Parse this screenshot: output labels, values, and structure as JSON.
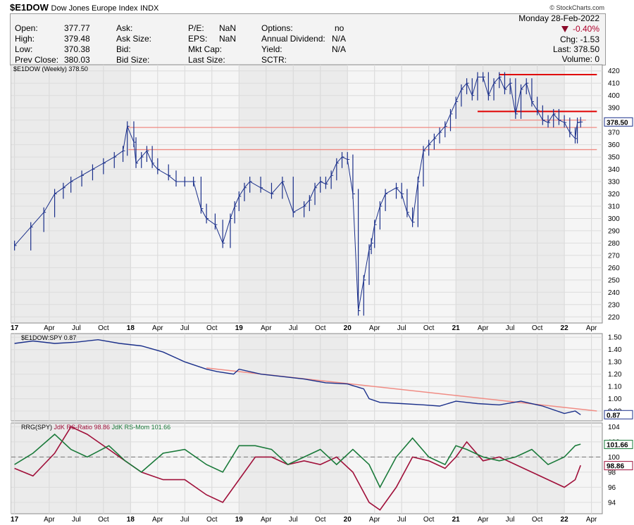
{
  "header": {
    "symbol": "$E1DOW",
    "name": "Dow Jones Europe Index",
    "exchange": "INDX",
    "brand": "© StockCharts.com"
  },
  "quote": {
    "open_label": "Open:",
    "open": "377.77",
    "high_label": "High:",
    "high": "379.48",
    "low_label": "Low:",
    "low": "370.38",
    "prevclose_label": "Prev Close:",
    "prevclose": "380.03",
    "ask_label": "Ask:",
    "ask": "",
    "asksize_label": "Ask Size:",
    "asksize": "",
    "bid_label": "Bid:",
    "bid": "",
    "bidsize_label": "Bid Size:",
    "bidsize": "",
    "pe_label": "P/E:",
    "pe": "NaN",
    "eps_label": "EPS:",
    "eps": "NaN",
    "mktcap_label": "Mkt Cap:",
    "mktcap": "",
    "lastsize_label": "Last Size:",
    "lastsize": "",
    "options_label": "Options:",
    "options": "no",
    "annualdiv_label": "Annual Dividend:",
    "annualdiv": "N/A",
    "yield_label": "Yield:",
    "yield": "N/A",
    "sctr_label": "SCTR:",
    "sctr": "",
    "date": "Monday  28-Feb-2022",
    "change_pct": "-0.40%",
    "chg": "Chg:  -1.53",
    "last": "Last:  378.50",
    "volume": "Volume:     0"
  },
  "colors": {
    "price": "#1a2f8a",
    "ratio_line": "#1a2f8a",
    "trend_light": "#f08c84",
    "trend_dark": "#e00000",
    "rs_ratio": "#a0103a",
    "rs_mom": "#1a7a3a",
    "panel_shade": "#ebebeb",
    "panel_light": "#f5f5f5",
    "down_arrow": "#8b0a2a"
  },
  "chart_data": [
    {
      "type": "line",
      "panel": "price",
      "title": "$E1DOW (Weekly) 378.50",
      "last_value_label": "378.50",
      "ylim": [
        215,
        425
      ],
      "yticks": [
        220,
        230,
        240,
        250,
        260,
        270,
        280,
        290,
        300,
        310,
        320,
        330,
        340,
        350,
        360,
        370,
        380,
        390,
        400,
        410,
        420
      ],
      "x_anchor_dates": [
        2017.0,
        2018.0,
        2019.0,
        2020.0,
        2021.0,
        2022.0
      ],
      "x": [
        2016.93,
        2017.08,
        2017.2,
        2017.3,
        2017.38,
        2017.45,
        2017.55,
        2017.65,
        2017.75,
        2017.85,
        2017.93,
        2017.97,
        2018.03,
        2018.05,
        2018.1,
        2018.15,
        2018.2,
        2018.25,
        2018.35,
        2018.42,
        2018.5,
        2018.58,
        2018.65,
        2018.7,
        2018.78,
        2018.85,
        2018.92,
        2018.96,
        2019.0,
        2019.05,
        2019.1,
        2019.2,
        2019.3,
        2019.4,
        2019.5,
        2019.6,
        2019.65,
        2019.7,
        2019.75,
        2019.8,
        2019.85,
        2019.9,
        2019.95,
        2020.0,
        2020.05,
        2020.1,
        2020.15,
        2020.2,
        2020.22,
        2020.25,
        2020.3,
        2020.35,
        2020.45,
        2020.5,
        2020.55,
        2020.6,
        2020.65,
        2020.7,
        2020.75,
        2020.8,
        2020.85,
        2020.9,
        2020.95,
        2021.0,
        2021.05,
        2021.1,
        2021.15,
        2021.2,
        2021.25,
        2021.3,
        2021.35,
        2021.4,
        2021.45,
        2021.5,
        2021.55,
        2021.6,
        2021.65,
        2021.7,
        2021.75,
        2021.8,
        2021.85,
        2021.9,
        2021.95,
        2022.0,
        2022.05,
        2022.1,
        2022.12,
        2022.15
      ],
      "values": [
        278,
        293,
        305,
        320,
        325,
        330,
        335,
        340,
        345,
        350,
        355,
        375,
        362,
        345,
        350,
        355,
        345,
        340,
        335,
        330,
        330,
        330,
        308,
        300,
        295,
        280,
        300,
        310,
        318,
        325,
        330,
        325,
        320,
        330,
        305,
        310,
        315,
        325,
        330,
        328,
        335,
        345,
        350,
        348,
        320,
        225,
        250,
        275,
        280,
        295,
        310,
        320,
        325,
        320,
        305,
        297,
        330,
        355,
        360,
        365,
        370,
        375,
        385,
        395,
        405,
        410,
        400,
        415,
        415,
        400,
        410,
        415,
        405,
        410,
        385,
        405,
        410,
        395,
        388,
        380,
        378,
        385,
        380,
        378,
        370,
        365,
        378,
        378.5
      ],
      "trend_lines": [
        {
          "style": "light",
          "y_start": 374,
          "y_end": 374,
          "x_start": 2017.98,
          "x_end": 2022.3
        },
        {
          "style": "light",
          "y_start": 356,
          "y_end": 356,
          "x_start": 2017.98,
          "x_end": 2022.3
        },
        {
          "style": "dark",
          "y_start": 417,
          "y_end": 417,
          "x_start": 2021.4,
          "x_end": 2022.3
        },
        {
          "style": "dark",
          "y_start": 387,
          "y_end": 387,
          "x_start": 2021.2,
          "x_end": 2022.3
        },
        {
          "style": "light",
          "y_start": 380,
          "y_end": 380,
          "x_start": 2021.5,
          "x_end": 2022.2
        }
      ]
    },
    {
      "type": "line",
      "panel": "ratio",
      "title": "$E1DOW:SPY 0.87",
      "last_value_label": "0.87",
      "ylim": [
        0.82,
        1.53
      ],
      "yticks": [
        0.9,
        1.0,
        1.1,
        1.2,
        1.3,
        1.4,
        1.5
      ],
      "ytick_labels": [
        "0.90",
        "1.00",
        "1.10",
        "1.20",
        "1.30",
        "1.40",
        "1.50"
      ],
      "x": [
        2016.93,
        2017.1,
        2017.3,
        2017.5,
        2017.7,
        2017.9,
        2018.1,
        2018.3,
        2018.5,
        2018.7,
        2018.8,
        2018.95,
        2019.0,
        2019.2,
        2019.4,
        2019.6,
        2019.8,
        2020.0,
        2020.15,
        2020.2,
        2020.3,
        2020.5,
        2020.7,
        2020.85,
        2021.0,
        2021.2,
        2021.4,
        2021.6,
        2021.8,
        2022.0,
        2022.1,
        2022.15
      ],
      "values": [
        1.45,
        1.47,
        1.45,
        1.46,
        1.48,
        1.45,
        1.43,
        1.38,
        1.3,
        1.24,
        1.22,
        1.2,
        1.24,
        1.2,
        1.18,
        1.16,
        1.13,
        1.12,
        1.08,
        1.0,
        0.97,
        0.96,
        0.95,
        0.94,
        0.98,
        0.96,
        0.95,
        0.98,
        0.94,
        0.88,
        0.9,
        0.87
      ],
      "trend_line": {
        "x_start": 2018.7,
        "y_start": 1.25,
        "x_end": 2022.3,
        "y_end": 0.9
      }
    },
    {
      "type": "line",
      "panel": "rrg",
      "title": "RRG(SPY)",
      "legend": [
        {
          "label": "JdK RS-Ratio 98.86",
          "key": "rs_ratio"
        },
        {
          "label": "JdK RS-Mom 101.66",
          "key": "rs_mom"
        }
      ],
      "last_labels": {
        "rs_mom": "101.66",
        "rs_ratio": "98.86"
      },
      "ylim": [
        92.5,
        104.5
      ],
      "yticks": [
        94,
        96,
        98,
        100,
        102,
        104
      ],
      "reference": 100,
      "x": [
        2016.93,
        2017.1,
        2017.3,
        2017.45,
        2017.6,
        2017.8,
        2017.95,
        2018.1,
        2018.3,
        2018.5,
        2018.7,
        2018.85,
        2019.0,
        2019.15,
        2019.3,
        2019.45,
        2019.6,
        2019.75,
        2019.9,
        2020.05,
        2020.2,
        2020.3,
        2020.45,
        2020.6,
        2020.75,
        2020.9,
        2021.0,
        2021.1,
        2021.25,
        2021.4,
        2021.55,
        2021.7,
        2021.85,
        2022.0,
        2022.1,
        2022.15
      ],
      "rs_ratio": [
        98.5,
        97.5,
        100.5,
        104,
        103,
        101,
        99.5,
        98,
        97,
        97,
        95,
        94,
        97,
        100,
        100,
        99,
        99.5,
        99,
        100,
        98,
        94,
        93,
        96,
        100,
        99.5,
        98.5,
        100,
        102,
        99.5,
        100,
        99,
        98,
        97,
        96,
        97,
        98.9
      ],
      "rs_mom": [
        99,
        100.5,
        103,
        101,
        100,
        101.5,
        99.5,
        98,
        100.5,
        101,
        99,
        98,
        101.5,
        101.5,
        101,
        99,
        100,
        101,
        99,
        101,
        99,
        96,
        100,
        102.5,
        100,
        99,
        101.5,
        101,
        100,
        99.5,
        100,
        101,
        99,
        100,
        101.5,
        101.7
      ]
    }
  ],
  "x_axis": {
    "tick_dates": [
      2016.93,
      2017.25,
      2017.5,
      2017.75,
      2018.0,
      2018.25,
      2018.5,
      2018.75,
      2019.0,
      2019.25,
      2019.5,
      2019.75,
      2020.0,
      2020.25,
      2020.5,
      2020.75,
      2021.0,
      2021.25,
      2021.5,
      2021.75,
      2022.0,
      2022.25
    ],
    "tick_labels": [
      "17",
      "Apr",
      "Jul",
      "Oct",
      "18",
      "Apr",
      "Jul",
      "Oct",
      "19",
      "Apr",
      "Jul",
      "Oct",
      "20",
      "Apr",
      "Jul",
      "Oct",
      "21",
      "Apr",
      "Jul",
      "Oct",
      "22",
      "Apr"
    ]
  }
}
